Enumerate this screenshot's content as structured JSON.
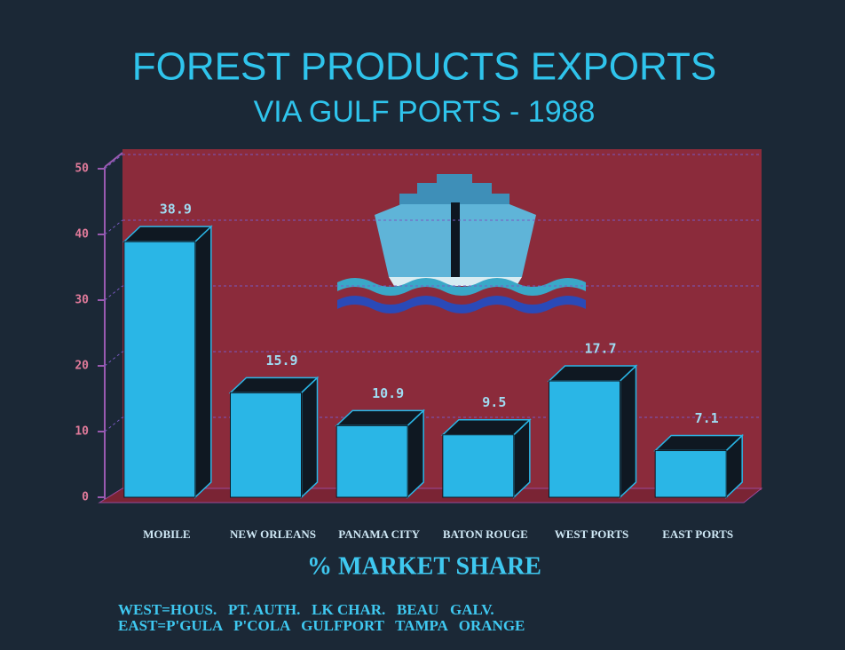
{
  "chart_data": {
    "type": "bar3d",
    "title": "FOREST PRODUCTS EXPORTS",
    "subtitle": "VIA GULF PORTS - 1988",
    "categories": [
      "MOBILE",
      "NEW ORLEANS",
      "PANAMA CITY",
      "BATON ROUGE",
      "WEST PORTS",
      "EAST PORTS"
    ],
    "values": [
      38.9,
      15.9,
      10.9,
      9.5,
      17.7,
      7.1
    ],
    "color": "#2ab6e6",
    "ylim": [
      0,
      50
    ],
    "yticks": [
      0,
      10,
      20,
      30,
      40,
      50
    ],
    "grid": true,
    "x_label": "% MARKET SHARE",
    "notes": [
      "WEST=HOUS.   PT. AUTH.   LK CHAR.   BEAU   GALV.",
      "EAST=P'GULA   P'COLA   GULFPORT   TAMPA   ORANGE"
    ]
  }
}
